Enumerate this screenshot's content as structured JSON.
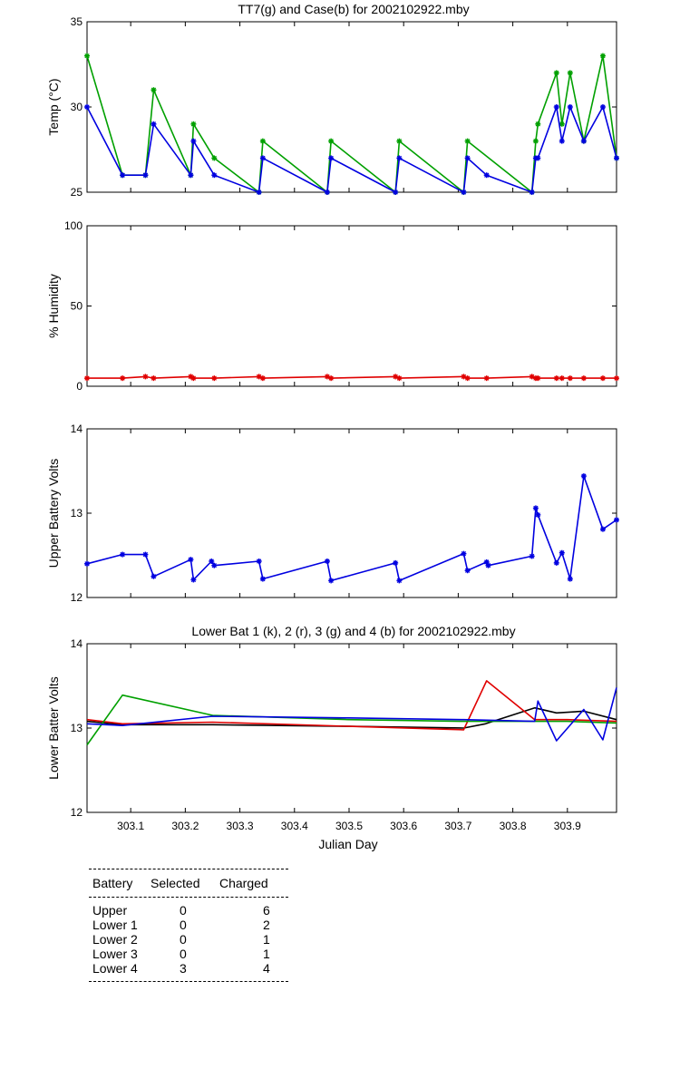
{
  "chart_data": [
    {
      "id": "temp",
      "type": "line",
      "title": "TT7(g) and Case(b) for 2002102922.mby",
      "xlabel": "",
      "ylabel": "Temp  (°C)",
      "xlim": [
        303.02,
        303.99
      ],
      "ylim": [
        25,
        35
      ],
      "yticks": [
        25,
        30,
        35
      ],
      "markers": true,
      "series": [
        {
          "name": "TT7",
          "color": "#00a000",
          "x": [
            303.02,
            303.085,
            303.127,
            303.142,
            303.21,
            303.215,
            303.253,
            303.335,
            303.342,
            303.46,
            303.467,
            303.585,
            303.592,
            303.71,
            303.717,
            303.835,
            303.842,
            303.846,
            303.88,
            303.89,
            303.905,
            303.93,
            303.965,
            303.99
          ],
          "y": [
            33,
            26,
            26,
            31,
            26,
            29,
            27,
            25,
            28,
            25,
            28,
            25,
            28,
            25,
            28,
            25,
            28,
            29,
            32,
            29,
            32,
            28,
            33,
            27
          ]
        },
        {
          "name": "Case",
          "color": "#0000e0",
          "x": [
            303.02,
            303.085,
            303.127,
            303.142,
            303.21,
            303.215,
            303.253,
            303.335,
            303.342,
            303.46,
            303.467,
            303.585,
            303.592,
            303.71,
            303.717,
            303.752,
            303.835,
            303.842,
            303.846,
            303.88,
            303.89,
            303.905,
            303.93,
            303.965,
            303.99
          ],
          "y": [
            30,
            26,
            26,
            29,
            26,
            28,
            26,
            25,
            27,
            25,
            27,
            25,
            27,
            25,
            27,
            26,
            25,
            27,
            27,
            30,
            28,
            30,
            28,
            30,
            27
          ]
        }
      ]
    },
    {
      "id": "humidity",
      "type": "line",
      "title": "",
      "xlabel": "",
      "ylabel": "% Humidity",
      "xlim": [
        303.02,
        303.99
      ],
      "ylim": [
        0,
        100
      ],
      "yticks": [
        0,
        50,
        100
      ],
      "markers": true,
      "series": [
        {
          "name": "Humidity",
          "color": "#e00000",
          "x": [
            303.02,
            303.085,
            303.127,
            303.142,
            303.21,
            303.215,
            303.253,
            303.335,
            303.342,
            303.46,
            303.467,
            303.585,
            303.592,
            303.71,
            303.717,
            303.752,
            303.835,
            303.842,
            303.846,
            303.88,
            303.89,
            303.905,
            303.93,
            303.965,
            303.99
          ],
          "y": [
            5,
            5,
            6,
            5,
            6,
            5,
            5,
            6,
            5,
            6,
            5,
            6,
            5,
            6,
            5,
            5,
            6,
            5,
            5,
            5,
            5,
            5,
            5,
            5,
            5
          ]
        }
      ]
    },
    {
      "id": "upper",
      "type": "line",
      "title": "",
      "xlabel": "",
      "ylabel": "Upper Battery Volts",
      "xlim": [
        303.02,
        303.99
      ],
      "ylim": [
        12,
        14
      ],
      "yticks": [
        12,
        13,
        14
      ],
      "markers": true,
      "series": [
        {
          "name": "Upper",
          "color": "#0000e0",
          "x": [
            303.02,
            303.085,
            303.127,
            303.142,
            303.21,
            303.215,
            303.248,
            303.253,
            303.335,
            303.342,
            303.46,
            303.467,
            303.585,
            303.592,
            303.71,
            303.717,
            303.752,
            303.755,
            303.835,
            303.842,
            303.846,
            303.88,
            303.89,
            303.905,
            303.93,
            303.965,
            303.99
          ],
          "y": [
            12.4,
            12.51,
            12.51,
            12.25,
            12.45,
            12.21,
            12.43,
            12.38,
            12.43,
            12.22,
            12.43,
            12.2,
            12.41,
            12.2,
            12.52,
            12.32,
            12.42,
            12.38,
            12.49,
            13.06,
            12.98,
            12.41,
            12.53,
            12.22,
            13.44,
            12.81,
            12.92
          ]
        }
      ]
    },
    {
      "id": "lower",
      "type": "line",
      "title": "Lower Bat 1 (k), 2 (r), 3 (g) and 4 (b) for 2002102922.mby",
      "xlabel": "Julian Day",
      "ylabel": "Lower Batter Volts",
      "xlim": [
        303.02,
        303.99
      ],
      "ylim": [
        12,
        14
      ],
      "yticks": [
        12,
        13,
        14
      ],
      "xticks": [
        303.1,
        303.2,
        303.3,
        303.4,
        303.5,
        303.6,
        303.7,
        303.8,
        303.9
      ],
      "xticklabels": [
        "303.1",
        "303.2",
        "303.3",
        "303.4",
        "303.5",
        "303.6",
        "303.7",
        "303.8",
        "303.9"
      ],
      "markers": false,
      "series": [
        {
          "name": "Lower 1",
          "color": "#000000",
          "x": [
            303.02,
            303.085,
            303.25,
            303.5,
            303.71,
            303.75,
            303.84,
            303.88,
            303.93,
            303.99
          ],
          "y": [
            13.08,
            13.04,
            13.04,
            13.02,
            13.0,
            13.05,
            13.24,
            13.18,
            13.2,
            13.1
          ]
        },
        {
          "name": "Lower 2",
          "color": "#e00000",
          "x": [
            303.02,
            303.085,
            303.25,
            303.5,
            303.71,
            303.752,
            303.84,
            303.9,
            303.99
          ],
          "y": [
            13.1,
            13.05,
            13.07,
            13.02,
            12.98,
            13.56,
            13.1,
            13.1,
            13.08
          ]
        },
        {
          "name": "Lower 3",
          "color": "#00a000",
          "x": [
            303.02,
            303.085,
            303.25,
            303.5,
            303.71,
            303.84,
            303.9,
            303.99
          ],
          "y": [
            12.8,
            13.39,
            13.15,
            13.1,
            13.08,
            13.08,
            13.08,
            13.06
          ]
        },
        {
          "name": "Lower 4",
          "color": "#0000e0",
          "x": [
            303.02,
            303.085,
            303.25,
            303.5,
            303.71,
            303.84,
            303.846,
            303.88,
            303.93,
            303.965,
            303.99
          ],
          "y": [
            13.05,
            13.03,
            13.14,
            13.12,
            13.1,
            13.08,
            13.32,
            12.85,
            13.22,
            12.86,
            13.48
          ]
        }
      ]
    }
  ],
  "battery_table": {
    "headers": [
      "Battery",
      "Selected",
      "Charged"
    ],
    "rows": [
      {
        "battery": "Upper",
        "selected": "0",
        "charged": "6"
      },
      {
        "battery": "Lower 1",
        "selected": "0",
        "charged": "2"
      },
      {
        "battery": "Lower 2",
        "selected": "0",
        "charged": "1"
      },
      {
        "battery": "Lower 3",
        "selected": "0",
        "charged": "1"
      },
      {
        "battery": "Lower 4",
        "selected": "3",
        "charged": "4"
      }
    ]
  }
}
